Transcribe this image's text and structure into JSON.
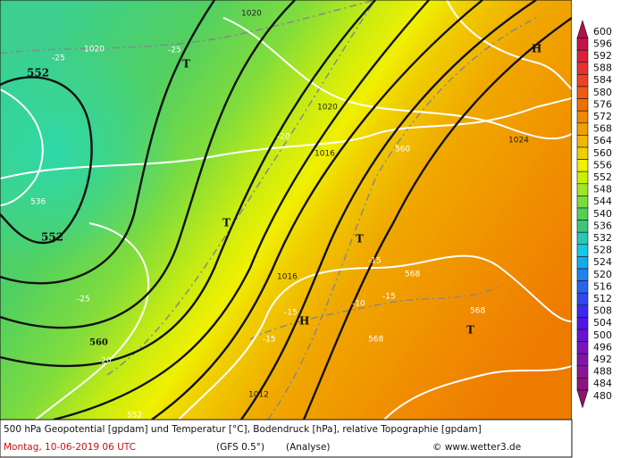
{
  "map_labels": [
    552,
    552,
    -25,
    1020,
    -25,
    "T",
    1020,
    1020,
    -20,
    1016,
    560,
    1024,
    "H",
    536,
    "T",
    "T",
    -15,
    568,
    1016,
    -25,
    -15,
    -10,
    -15,
    "H",
    568,
    "T",
    -15,
    560,
    -20,
    568,
    1012,
    552
  ],
  "colorbar": {
    "levels": [
      600,
      596,
      592,
      588,
      584,
      580,
      576,
      572,
      568,
      564,
      560,
      556,
      552,
      548,
      544,
      540,
      536,
      532,
      528,
      524,
      520,
      516,
      512,
      508,
      504,
      500,
      496,
      492,
      488,
      484,
      480
    ],
    "colors": [
      "#b01050",
      "#c8104a",
      "#dc1e3c",
      "#ea3030",
      "#f04220",
      "#f05a10",
      "#f07000",
      "#f08800",
      "#f0a000",
      "#f0b800",
      "#f0d000",
      "#f0f000",
      "#c8f000",
      "#a0e628",
      "#78dc3c",
      "#50d250",
      "#3cc878",
      "#28c8b4",
      "#14c8e6",
      "#14aaf0",
      "#1e82f0",
      "#2864f0",
      "#3246f0",
      "#3c28f0",
      "#5014e6",
      "#6414d2",
      "#7814be",
      "#8214aa",
      "#8c1496",
      "#8c1482",
      "#8c146e"
    ]
  },
  "footer": {
    "caption": "500 hPa Geopotential [gpdam] und Temperatur [°C], Bodendruck [hPa], relative Topographie [gpdam]",
    "date": "Montag, 10-06-2019  06 UTC",
    "model": "(GFS 0.5°)",
    "run": "(Analyse)",
    "credit": "© www.wetter3.de"
  }
}
